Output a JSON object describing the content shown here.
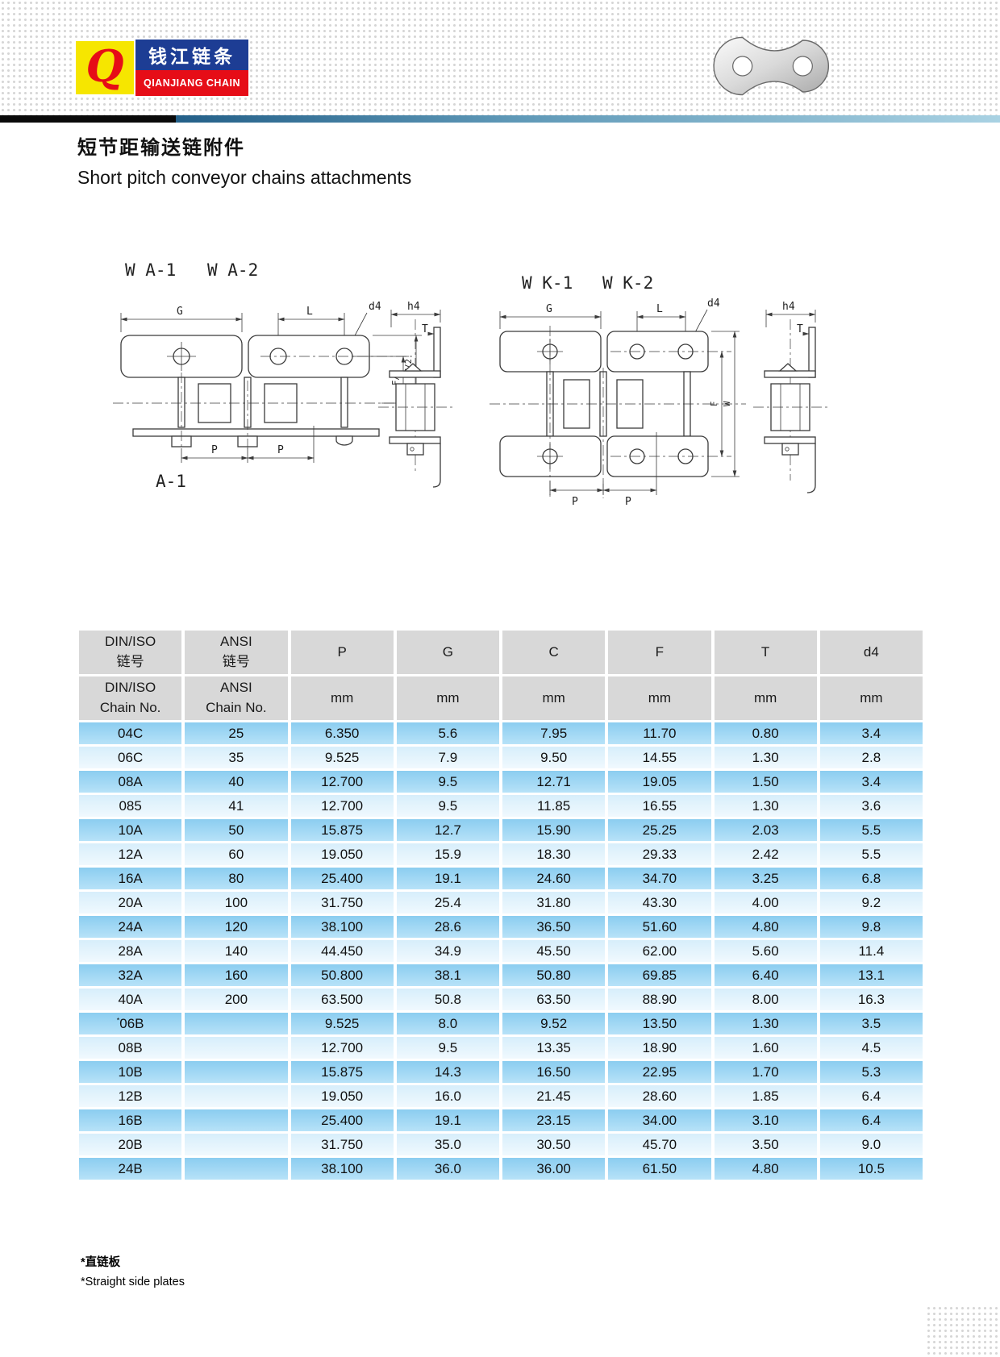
{
  "header": {
    "logo_monogram": "Q",
    "brand_cn": "钱江链条",
    "brand_en": "QIANJIANG CHAIN",
    "colors": {
      "brand_blue": "#1d3d94",
      "brand_red": "#e60d17",
      "brand_yellow": "#f6e600"
    }
  },
  "title": {
    "cn": "短节距输送链附件",
    "en": "Short pitch conveyor chains attachments"
  },
  "diagrams": {
    "left": {
      "title_1": "W A-1",
      "title_2": "W A-2",
      "caption": "A-1",
      "dim_g": "G",
      "dim_l": "L",
      "dim_d4": "d4",
      "dim_p": "P",
      "dim_f2": "F/2",
      "dim_w2": "W/2",
      "dim_h4": "h4",
      "dim_t": "T"
    },
    "right": {
      "title_1": "W K-1",
      "title_2": "W K-2",
      "dim_g": "G",
      "dim_l": "L",
      "dim_d4": "d4",
      "dim_p": "P",
      "dim_f": "F",
      "dim_w": "W",
      "dim_h4": "h4",
      "dim_t": "T"
    }
  },
  "table": {
    "h1c1a": "DIN/ISO",
    "h1c1b": "链号",
    "h1c2a": "ANSI",
    "h1c2b": "链号",
    "h1c3": "P",
    "h1c4": "G",
    "h1c5": "C",
    "h1c6": "F",
    "h1c7": "T",
    "h1c8": "d4",
    "h2c1a": "DIN/ISO",
    "h2c1b": "Chain No.",
    "h2c2a": "ANSI",
    "h2c2b": "Chain No.",
    "unit": "mm",
    "rows": [
      [
        "04C",
        "25",
        "6.350",
        "5.6",
        "7.95",
        "11.70",
        "0.80",
        "3.4"
      ],
      [
        "06C",
        "35",
        "9.525",
        "7.9",
        "9.50",
        "14.55",
        "1.30",
        "2.8"
      ],
      [
        "08A",
        "40",
        "12.700",
        "9.5",
        "12.71",
        "19.05",
        "1.50",
        "3.4"
      ],
      [
        "085",
        "41",
        "12.700",
        "9.5",
        "11.85",
        "16.55",
        "1.30",
        "3.6"
      ],
      [
        "10A",
        "50",
        "15.875",
        "12.7",
        "15.90",
        "25.25",
        "2.03",
        "5.5"
      ],
      [
        "12A",
        "60",
        "19.050",
        "15.9",
        "18.30",
        "29.33",
        "2.42",
        "5.5"
      ],
      [
        "16A",
        "80",
        "25.400",
        "19.1",
        "24.60",
        "34.70",
        "3.25",
        "6.8"
      ],
      [
        "20A",
        "100",
        "31.750",
        "25.4",
        "31.80",
        "43.30",
        "4.00",
        "9.2"
      ],
      [
        "24A",
        "120",
        "38.100",
        "28.6",
        "36.50",
        "51.60",
        "4.80",
        "9.8"
      ],
      [
        "28A",
        "140",
        "44.450",
        "34.9",
        "45.50",
        "62.00",
        "5.60",
        "11.4"
      ],
      [
        "32A",
        "160",
        "50.800",
        "38.1",
        "50.80",
        "69.85",
        "6.40",
        "13.1"
      ],
      [
        "40A",
        "200",
        "63.500",
        "50.8",
        "63.50",
        "88.90",
        "8.00",
        "16.3"
      ],
      [
        "*06B",
        "",
        "9.525",
        "8.0",
        "9.52",
        "13.50",
        "1.30",
        "3.5"
      ],
      [
        "08B",
        "",
        "12.700",
        "9.5",
        "13.35",
        "18.90",
        "1.60",
        "4.5"
      ],
      [
        "10B",
        "",
        "15.875",
        "14.3",
        "16.50",
        "22.95",
        "1.70",
        "5.3"
      ],
      [
        "12B",
        "",
        "19.050",
        "16.0",
        "21.45",
        "28.60",
        "1.85",
        "6.4"
      ],
      [
        "16B",
        "",
        "25.400",
        "19.1",
        "23.15",
        "34.00",
        "3.10",
        "6.4"
      ],
      [
        "20B",
        "",
        "31.750",
        "35.0",
        "30.50",
        "45.70",
        "3.50",
        "9.0"
      ],
      [
        "24B",
        "",
        "38.100",
        "36.0",
        "36.00",
        "61.50",
        "4.80",
        "10.5"
      ]
    ]
  },
  "footnotes": {
    "cn": "*直链板",
    "en": "*Straight side plates"
  },
  "colors": {
    "header_gray": "#d8d8d8",
    "row_dark": "#8bcdf0",
    "row_light": "#d7eefb",
    "divider_blue": "#235f88"
  }
}
